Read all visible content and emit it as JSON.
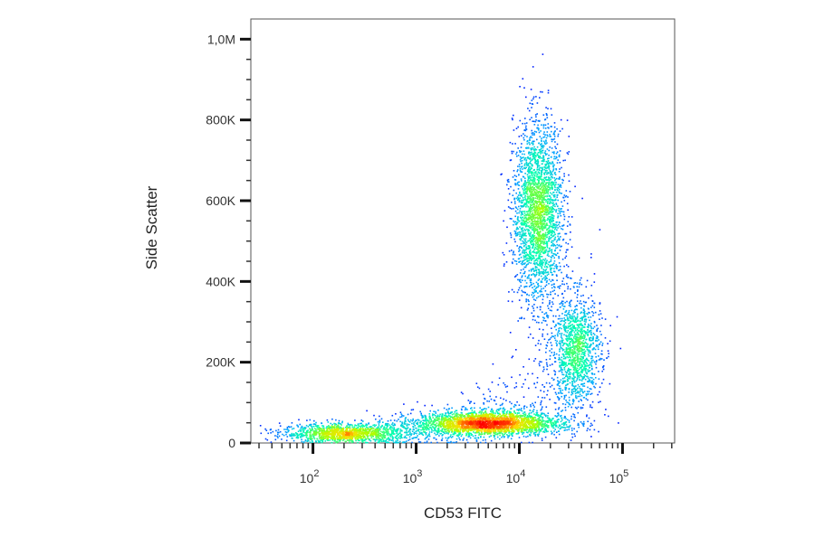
{
  "chart_data": {
    "type": "scatter",
    "subtype": "flow-cytometry density dot plot",
    "title": "",
    "xlabel": "CD53 FITC",
    "ylabel": "Side Scatter",
    "x_scale": "log",
    "y_scale": "linear",
    "xlim": [
      25,
      320000
    ],
    "ylim": [
      0,
      1050000
    ],
    "x_ticks": [
      {
        "value": 100,
        "base": "10",
        "exp": "2"
      },
      {
        "value": 1000,
        "base": "10",
        "exp": "3"
      },
      {
        "value": 10000,
        "base": "10",
        "exp": "4"
      },
      {
        "value": 100000,
        "base": "10",
        "exp": "5"
      }
    ],
    "y_ticks": [
      {
        "value": 0,
        "label": "0"
      },
      {
        "value": 200000,
        "label": "200K"
      },
      {
        "value": 400000,
        "label": "400K"
      },
      {
        "value": 600000,
        "label": "600K"
      },
      {
        "value": 800000,
        "label": "800K"
      },
      {
        "value": 1000000,
        "label": "1,0M"
      }
    ],
    "color_scale": [
      "#0000ff",
      "#00aaff",
      "#00ffb0",
      "#aaff00",
      "#ffdd00",
      "#ff0000"
    ],
    "populations": [
      {
        "x_center": 200,
        "y_center": 25000,
        "x_spread_decades": 0.3,
        "y_spread": 12000,
        "density": "medium"
      },
      {
        "x_center": 5000,
        "y_center": 50000,
        "x_spread_decades": 0.35,
        "y_spread": 15000,
        "density": "high"
      },
      {
        "x_center": 15000,
        "y_center": 570000,
        "x_spread_decades": 0.12,
        "y_spread": 110000,
        "density": "high"
      },
      {
        "x_center": 35000,
        "y_center": 230000,
        "x_spread_decades": 0.12,
        "y_spread": 70000,
        "density": "medium"
      }
    ]
  }
}
